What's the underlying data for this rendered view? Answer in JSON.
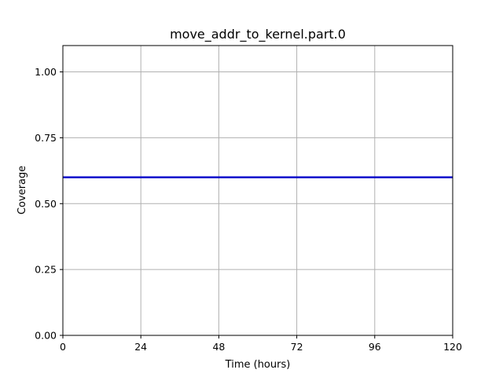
{
  "chart_data": {
    "type": "line",
    "title": "move_addr_to_kernel.part.0",
    "xlabel": "Time (hours)",
    "ylabel": "Coverage",
    "xlim": [
      0,
      120
    ],
    "ylim": [
      0,
      1.1
    ],
    "xticks": [
      0,
      24,
      48,
      72,
      96,
      120
    ],
    "yticks": [
      0,
      0.25,
      0.5,
      0.75,
      1.0
    ],
    "xtick_labels": [
      "0",
      "24",
      "48",
      "72",
      "96",
      "120"
    ],
    "ytick_labels": [
      "0.00",
      "0.25",
      "0.50",
      "0.75",
      "1.00"
    ],
    "grid": true,
    "series": [
      {
        "color": "#0000cc",
        "x": [
          0,
          120
        ],
        "y": [
          0.6,
          0.6
        ]
      }
    ]
  }
}
